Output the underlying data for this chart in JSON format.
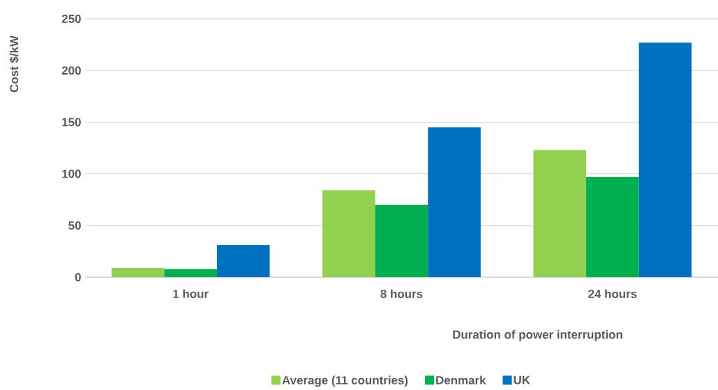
{
  "chart_data": {
    "type": "bar",
    "categories": [
      "1 hour",
      "8 hours",
      "24 hours"
    ],
    "xlabel": "Duration of power interruption",
    "ylabel": "Cost $/kW",
    "series": [
      {
        "name": "Average (11 countries)",
        "color": "#92d050",
        "values": [
          9,
          84,
          123
        ]
      },
      {
        "name": "Denmark",
        "color": "#00b050",
        "values": [
          8,
          70,
          97
        ]
      },
      {
        "name": "UK",
        "color": "#0070c0",
        "values": [
          31,
          145,
          227
        ]
      }
    ],
    "ylim": [
      0,
      250
    ],
    "yticks": [
      0,
      50,
      100,
      150,
      200,
      250
    ],
    "grid": "y",
    "legend": "bottom"
  }
}
